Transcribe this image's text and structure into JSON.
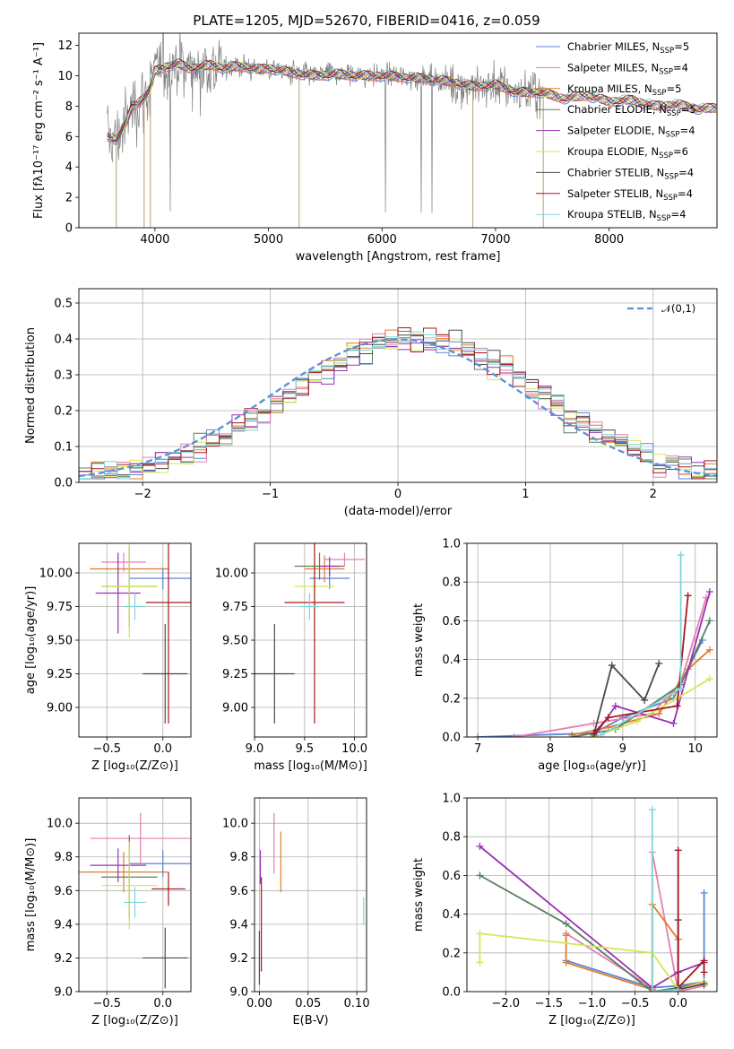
{
  "figure_title": "PLATE=1205, MJD=52670, FIBERID=0416, z=0.059",
  "colors": {
    "Chabrier MILES": "#5b86d6",
    "Salpeter MILES": "#e57fb0",
    "Kroupa MILES": "#e07b2a",
    "Chabrier ELODIE": "#5a7f5e",
    "Salpeter ELODIE": "#9b30b5",
    "Kroupa ELODIE": "#d6e653",
    "Chabrier STELIB": "#4a4a4a",
    "Salpeter STELIB": "#a8171d",
    "Kroupa STELIB": "#7fd6d6",
    "data": "#808080"
  },
  "chart_data": [
    {
      "id": "spectrum",
      "type": "line",
      "title": "PLATE=1205, MJD=52670, FIBERID=0416, z=0.059",
      "xlabel": "wavelength [Angstrom, rest frame]",
      "ylabel": "Flux [fλ10⁻¹⁷ erg cm⁻² s⁻¹ A⁻¹]",
      "xlim": [
        3330,
        8950
      ],
      "ylim": [
        0,
        12.8
      ],
      "xticks": [
        4000,
        5000,
        6000,
        7000,
        8000
      ],
      "yticks": [
        0,
        2,
        4,
        6,
        8,
        10,
        12
      ],
      "grid": false,
      "legend_position": "top-right",
      "legend": [
        {
          "name": "Chabrier MILES",
          "nssp_label": "N",
          "nssp_sub": "SSP",
          "nssp_value": "=5"
        },
        {
          "name": "Salpeter MILES",
          "nssp_label": "N",
          "nssp_sub": "SSP",
          "nssp_value": "=4"
        },
        {
          "name": "Kroupa MILES",
          "nssp_label": "N",
          "nssp_sub": "SSP",
          "nssp_value": "=5"
        },
        {
          "name": "Chabrier ELODIE",
          "nssp_label": "N",
          "nssp_sub": "SSP",
          "nssp_value": "=5"
        },
        {
          "name": "Salpeter ELODIE",
          "nssp_label": "N",
          "nssp_sub": "SSP",
          "nssp_value": "=4"
        },
        {
          "name": "Kroupa ELODIE",
          "nssp_label": "N",
          "nssp_sub": "SSP",
          "nssp_value": "=6"
        },
        {
          "name": "Chabrier STELIB",
          "nssp_label": "N",
          "nssp_sub": "SSP",
          "nssp_value": "=4"
        },
        {
          "name": "Salpeter STELIB",
          "nssp_label": "N",
          "nssp_sub": "SSP",
          "nssp_value": "=4"
        },
        {
          "name": "Kroupa STELIB",
          "nssp_label": "N",
          "nssp_sub": "SSP",
          "nssp_value": "=4"
        }
      ],
      "continuum_x": [
        3600,
        3650,
        3700,
        3750,
        3800,
        3850,
        3900,
        3950,
        4000,
        4100,
        4200,
        4300,
        4400,
        4500,
        4600,
        4700,
        4800,
        4900,
        5000,
        5200,
        5400,
        5600,
        5800,
        6000,
        6200,
        6400,
        6600,
        6800,
        7000,
        7200,
        7400,
        7600,
        7800,
        8000,
        8200,
        8400,
        8600,
        8800,
        8950
      ],
      "continuum_y": [
        6.0,
        5.8,
        6.3,
        7.0,
        8.0,
        8.2,
        8.6,
        9.0,
        10.3,
        10.6,
        10.8,
        10.5,
        10.6,
        10.7,
        10.5,
        10.6,
        10.6,
        10.4,
        10.5,
        10.2,
        10.0,
        10.1,
        10.0,
        10.0,
        9.9,
        9.8,
        9.6,
        9.3,
        9.4,
        8.9,
        8.9,
        8.5,
        8.7,
        8.3,
        8.4,
        8.0,
        8.1,
        7.8,
        7.9
      ]
    },
    {
      "id": "residual_histogram",
      "type": "histogram",
      "xlabel": "(data-model)/error",
      "ylabel": "Normed distribution",
      "xlim": [
        -2.5,
        2.5
      ],
      "ylim": [
        0,
        0.54
      ],
      "xticks": [
        -2,
        -1,
        0,
        1,
        2
      ],
      "yticks": [
        0.0,
        0.1,
        0.2,
        0.3,
        0.4,
        0.5
      ],
      "grid": true,
      "legend_position": "top-right",
      "reference_curve": {
        "name": "𝒩(0,1)",
        "mean": 0,
        "sigma": 1,
        "style": "dashed",
        "color": "#5b8fd6"
      }
    },
    {
      "id": "age_vs_Z",
      "type": "errorbar",
      "xlabel": "Z [log₁₀(Z/Z⊙)]",
      "ylabel": "age  [log₁₀(age/yr)]",
      "xlim": [
        -0.75,
        0.25
      ],
      "ylim": [
        8.78,
        10.22
      ],
      "xticks": [
        -0.5,
        0.0
      ],
      "yticks": [
        9.0,
        9.25,
        9.5,
        9.75,
        10.0
      ],
      "grid": true,
      "points": [
        {
          "series": "Chabrier MILES",
          "x": 0.0,
          "xerr": 0.3,
          "y": 9.96,
          "yerr": 0.08
        },
        {
          "series": "Salpeter MILES",
          "x": -0.35,
          "xerr": 0.2,
          "y": 10.08,
          "yerr": 0.07
        },
        {
          "series": "Kroupa MILES",
          "x": -0.3,
          "xerr": 0.35,
          "y": 10.03,
          "yerr": 0.1
        },
        {
          "series": "Chabrier ELODIE",
          "x": -0.3,
          "xerr": 0.25,
          "y": 9.9,
          "yerr": 0.3
        },
        {
          "series": "Salpeter ELODIE",
          "x": -0.4,
          "xerr": 0.2,
          "y": 9.85,
          "yerr": 0.3
        },
        {
          "series": "Kroupa ELODIE",
          "x": -0.3,
          "xerr": 0.25,
          "y": 9.9,
          "yerr": 0.38
        },
        {
          "series": "Chabrier STELIB",
          "x": 0.02,
          "xerr": 0.2,
          "y": 9.25,
          "yerr": 0.37
        },
        {
          "series": "Salpeter STELIB",
          "x": 0.05,
          "xerr": 0.2,
          "y": 9.78,
          "yerr": 0.9
        },
        {
          "series": "Kroupa STELIB",
          "x": -0.25,
          "xerr": 0.1,
          "y": 9.75,
          "yerr": 0.1
        }
      ]
    },
    {
      "id": "age_vs_mass",
      "type": "errorbar",
      "xlabel": "mass [log₁₀(M/M⊙)]",
      "ylabel": "",
      "xlim": [
        9.0,
        10.12
      ],
      "ylim": [
        8.78,
        10.22
      ],
      "xticks": [
        9.0,
        9.5,
        10.0
      ],
      "yticks": [
        9.0,
        9.25,
        9.5,
        9.75,
        10.0
      ],
      "grid": true,
      "points": [
        {
          "series": "Chabrier MILES",
          "x": 9.75,
          "xerr": 0.2,
          "y": 9.96,
          "yerr": 0.08
        },
        {
          "series": "Salpeter MILES",
          "x": 9.9,
          "xerr": 0.2,
          "y": 10.1,
          "yerr": 0.05
        },
        {
          "series": "Kroupa MILES",
          "x": 9.7,
          "xerr": 0.2,
          "y": 10.03,
          "yerr": 0.1
        },
        {
          "series": "Chabrier ELODIE",
          "x": 9.65,
          "xerr": 0.25,
          "y": 10.05,
          "yerr": 0.1
        },
        {
          "series": "Salpeter ELODIE",
          "x": 9.75,
          "xerr": 0.1,
          "y": 10.05,
          "yerr": 0.07
        },
        {
          "series": "Kroupa ELODIE",
          "x": 9.6,
          "xerr": 0.2,
          "y": 9.9,
          "yerr": 0.38
        },
        {
          "series": "Chabrier STELIB",
          "x": 9.2,
          "xerr": 0.2,
          "y": 9.25,
          "yerr": 0.37
        },
        {
          "series": "Salpeter STELIB",
          "x": 9.6,
          "xerr": 0.3,
          "y": 9.78,
          "yerr": 0.9
        },
        {
          "series": "Kroupa STELIB",
          "x": 9.55,
          "xerr": 0.1,
          "y": 9.75,
          "yerr": 0.1
        }
      ]
    },
    {
      "id": "mass_weight_vs_age",
      "type": "line",
      "xlabel": "age  [log₁₀(age/yr)]",
      "ylabel": "mass weight",
      "xlim": [
        6.85,
        10.3
      ],
      "ylim": [
        0,
        1.0
      ],
      "xticks": [
        7,
        8,
        9,
        10
      ],
      "yticks": [
        0.0,
        0.2,
        0.4,
        0.6,
        0.8,
        1.0
      ],
      "grid": true,
      "series": [
        {
          "name": "Chabrier MILES",
          "x": [
            7.0,
            8.6,
            9.0,
            9.7,
            10.1
          ],
          "y": [
            0.0,
            0.02,
            0.1,
            0.2,
            0.5
          ]
        },
        {
          "name": "Salpeter MILES",
          "x": [
            7.5,
            8.6,
            9.4,
            9.8,
            10.15
          ],
          "y": [
            0.0,
            0.07,
            0.12,
            0.28,
            0.72
          ]
        },
        {
          "name": "Kroupa MILES",
          "x": [
            8.3,
            8.8,
            9.5,
            9.9,
            10.2
          ],
          "y": [
            0.01,
            0.05,
            0.12,
            0.35,
            0.45
          ]
        },
        {
          "name": "Chabrier ELODIE",
          "x": [
            8.3,
            8.9,
            9.8,
            10.2
          ],
          "y": [
            0.0,
            0.04,
            0.27,
            0.6
          ]
        },
        {
          "name": "Salpeter ELODIE",
          "x": [
            8.6,
            8.9,
            9.7,
            10.2
          ],
          "y": [
            0.0,
            0.16,
            0.07,
            0.75
          ]
        },
        {
          "name": "Kroupa ELODIE",
          "x": [
            8.6,
            9.2,
            9.75,
            10.2
          ],
          "y": [
            0.0,
            0.08,
            0.2,
            0.3
          ]
        },
        {
          "name": "Chabrier STELIB",
          "x": [
            8.6,
            8.85,
            9.3,
            9.5
          ],
          "y": [
            0.01,
            0.37,
            0.19,
            0.38
          ]
        },
        {
          "name": "Salpeter STELIB",
          "x": [
            8.6,
            8.8,
            9.75,
            9.9
          ],
          "y": [
            0.02,
            0.1,
            0.16,
            0.73
          ]
        },
        {
          "name": "Kroupa STELIB",
          "x": [
            8.7,
            9.8,
            9.8
          ],
          "y": [
            0.01,
            0.25,
            0.94
          ]
        }
      ]
    },
    {
      "id": "mass_vs_Z",
      "type": "errorbar",
      "xlabel": "Z [log₁₀(Z/Z⊙)]",
      "ylabel": "mass [log₁₀(M/M⊙)]",
      "xlim": [
        -0.75,
        0.25
      ],
      "ylim": [
        9.0,
        10.15
      ],
      "xticks": [
        -0.5,
        0.0
      ],
      "yticks": [
        9.0,
        9.2,
        9.4,
        9.6,
        9.8,
        10.0
      ],
      "grid": true,
      "points": [
        {
          "series": "Chabrier MILES",
          "x": 0.0,
          "xerr": 0.3,
          "y": 9.76,
          "yerr": 0.08
        },
        {
          "series": "Salpeter MILES",
          "x": -0.2,
          "xerr": 0.45,
          "y": 9.91,
          "yerr": 0.15
        },
        {
          "series": "Kroupa MILES",
          "x": -0.35,
          "xerr": 0.4,
          "y": 9.71,
          "yerr": 0.12
        },
        {
          "series": "Chabrier ELODIE",
          "x": -0.3,
          "xerr": 0.25,
          "y": 9.68,
          "yerr": 0.25
        },
        {
          "series": "Salpeter ELODIE",
          "x": -0.4,
          "xerr": 0.25,
          "y": 9.75,
          "yerr": 0.1
        },
        {
          "series": "Kroupa ELODIE",
          "x": -0.3,
          "xerr": 0.25,
          "y": 9.63,
          "yerr": 0.26
        },
        {
          "series": "Chabrier STELIB",
          "x": 0.02,
          "xerr": 0.2,
          "y": 9.2,
          "yerr": 0.18
        },
        {
          "series": "Salpeter STELIB",
          "x": 0.05,
          "xerr": 0.15,
          "y": 9.61,
          "yerr": 0.1
        },
        {
          "series": "Kroupa STELIB",
          "x": -0.25,
          "xerr": 0.1,
          "y": 9.53,
          "yerr": 0.09
        }
      ]
    },
    {
      "id": "mass_vs_EBV",
      "type": "errorbar",
      "xlabel": "E(B-V)",
      "ylabel": "",
      "xlim": [
        -0.005,
        0.11
      ],
      "ylim": [
        9.0,
        10.15
      ],
      "xticks": [
        0.0,
        0.05,
        0.1
      ],
      "yticks": [
        9.0,
        9.2,
        9.4,
        9.6,
        9.8,
        10.0
      ],
      "grid": true,
      "points": [
        {
          "series": "Salpeter MILES",
          "x": 0.015,
          "xerr": 0.0,
          "y": 9.88,
          "yerr": 0.18
        },
        {
          "series": "Kroupa MILES",
          "x": 0.022,
          "xerr": 0.0,
          "y": 9.77,
          "yerr": 0.18
        },
        {
          "series": "Salpeter ELODIE",
          "x": 0.001,
          "xerr": 0.0,
          "y": 9.74,
          "yerr": 0.1
        },
        {
          "series": "Chabrier STELIB",
          "x": 0.0,
          "xerr": 0.0,
          "y": 9.2,
          "yerr": 0.16
        },
        {
          "series": "Salpeter STELIB",
          "x": 0.002,
          "xerr": 0.0,
          "y": 9.4,
          "yerr": 0.28
        },
        {
          "series": "Kroupa STELIB",
          "x": 0.107,
          "xerr": 0.0,
          "y": 9.48,
          "yerr": 0.08
        }
      ]
    },
    {
      "id": "mass_weight_vs_Z",
      "type": "line",
      "xlabel": "Z [log₁₀(Z/Z⊙)]",
      "ylabel": "mass weight",
      "xlim": [
        -2.45,
        0.45
      ],
      "ylim": [
        0,
        1.0
      ],
      "xticks": [
        -2.0,
        -1.5,
        -1.0,
        -0.5,
        0.0
      ],
      "yticks": [
        0.0,
        0.2,
        0.4,
        0.6,
        0.8,
        1.0
      ],
      "grid": true,
      "series": [
        {
          "name": "Chabrier MILES",
          "x": [
            -1.3,
            -0.3,
            0.0,
            0.3,
            0.3
          ],
          "y": [
            0.16,
            0.02,
            0.03,
            0.05,
            0.51
          ]
        },
        {
          "name": "Salpeter MILES",
          "x": [
            -1.3,
            -0.3,
            -0.3,
            0.0,
            0.3
          ],
          "y": [
            0.3,
            0.02,
            0.72,
            0.0,
            0.03
          ]
        },
        {
          "name": "Kroupa MILES",
          "x": [
            -1.3,
            -1.3,
            -0.3,
            -0.3,
            0.0,
            0.0,
            0.3
          ],
          "y": [
            0.29,
            0.15,
            0.01,
            0.45,
            0.27,
            0.02,
            0.05
          ]
        },
        {
          "name": "Chabrier ELODIE",
          "x": [
            -2.3,
            -1.3,
            -0.3,
            0.0,
            0.3
          ],
          "y": [
            0.6,
            0.35,
            0.0,
            0.02,
            0.04
          ]
        },
        {
          "name": "Salpeter ELODIE",
          "x": [
            -2.3,
            -0.3,
            0.0,
            0.3
          ],
          "y": [
            0.75,
            0.02,
            0.1,
            0.15
          ]
        },
        {
          "name": "Kroupa ELODIE",
          "x": [
            -2.3,
            -2.3,
            -0.3,
            0.0,
            0.3
          ],
          "y": [
            0.15,
            0.3,
            0.2,
            0.01,
            0.05
          ]
        },
        {
          "name": "Chabrier STELIB",
          "x": [
            0.0,
            0.0,
            0.3
          ],
          "y": [
            0.37,
            0.01,
            0.04
          ]
        },
        {
          "name": "Salpeter STELIB",
          "x": [
            0.0,
            0.0,
            0.3,
            0.3
          ],
          "y": [
            0.73,
            0.02,
            0.16,
            0.1
          ]
        },
        {
          "name": "Kroupa STELIB",
          "x": [
            -0.3,
            -0.3,
            0.0
          ],
          "y": [
            0.94,
            0.0,
            0.01
          ]
        }
      ]
    }
  ]
}
